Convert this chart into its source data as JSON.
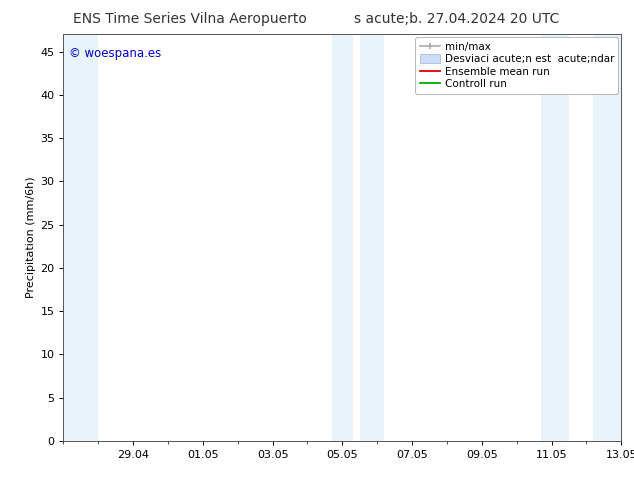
{
  "title_left": "ENS Time Series Vilna Aeropuerto",
  "title_right": "s acute;b. 27.04.2024 20 UTC",
  "ylabel": "Precipitation (mm/6h)",
  "watermark": "© woespana.es",
  "watermark_color": "#0000cc",
  "background_color": "#ffffff",
  "plot_bg_color": "#ffffff",
  "ylim": [
    0,
    47
  ],
  "yticks": [
    0,
    5,
    10,
    15,
    20,
    25,
    30,
    35,
    40,
    45
  ],
  "xtick_labels": [
    "29.04",
    "01.05",
    "03.05",
    "05.05",
    "07.05",
    "09.05",
    "11.05",
    "13.05"
  ],
  "band_color": "#ddeef8",
  "band_alpha": 0.65,
  "legend_entries": [
    {
      "label": "min/max"
    },
    {
      "label": "Desviaci acute;n est  acute;ndar"
    },
    {
      "label": "Ensemble mean run"
    },
    {
      "label": "Controll run"
    }
  ],
  "title_fontsize": 10,
  "axis_fontsize": 8,
  "tick_fontsize": 8,
  "legend_fontsize": 7.5
}
